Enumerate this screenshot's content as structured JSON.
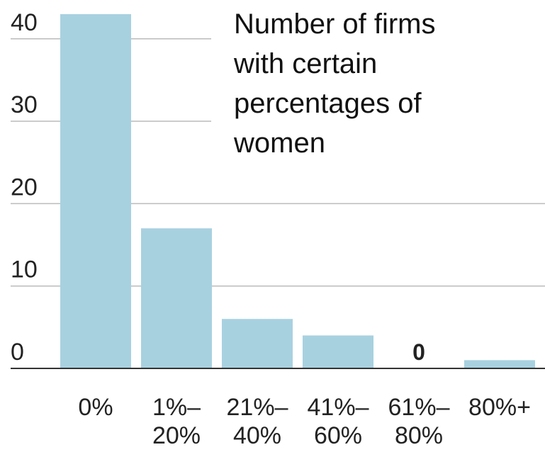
{
  "chart_data": {
    "type": "bar",
    "title": "Number of firms with certain percentages of women",
    "categories": [
      "0%",
      "1%–20%",
      "21%–40%",
      "41%–60%",
      "61%–80%",
      "80%+"
    ],
    "values": [
      43,
      17,
      6,
      4,
      0,
      1
    ],
    "value_labels": [
      null,
      null,
      null,
      null,
      "0",
      null
    ],
    "color": "#a8d1e0",
    "ylim": [
      0,
      43
    ],
    "yticks": [
      0,
      10,
      20,
      30,
      40
    ],
    "grid": true
  }
}
